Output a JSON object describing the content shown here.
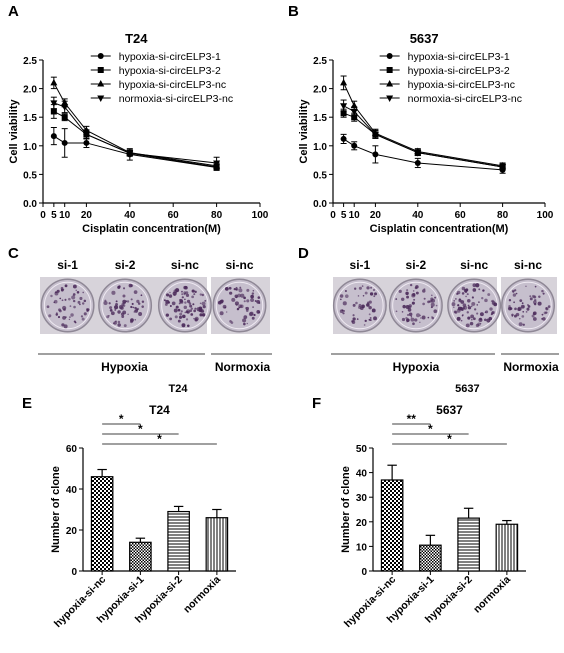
{
  "panels": {
    "A": "A",
    "B": "B",
    "C": "C",
    "D": "D",
    "E": "E",
    "F": "F"
  },
  "chart_data": [
    {
      "type": "line",
      "title": "T24",
      "xlabel": "Cisplatin concentration(M)",
      "ylabel": "Cell viability",
      "xlim": [
        0,
        100
      ],
      "ylim": [
        0.0,
        2.5
      ],
      "xticks": [
        0,
        5,
        10,
        20,
        40,
        60,
        80,
        100
      ],
      "yticks": [
        0.0,
        0.5,
        1.0,
        1.5,
        2.0,
        2.5
      ],
      "x": [
        5,
        10,
        20,
        40,
        80
      ],
      "legend": "top-right",
      "series": [
        {
          "name": "hypoxia-si-circELP3-1",
          "marker": "circle",
          "values": [
            1.17,
            1.05,
            1.05,
            0.85,
            0.62
          ],
          "err": [
            0.15,
            0.25,
            0.08,
            0.1,
            0.05
          ]
        },
        {
          "name": "hypoxia-si-circELP3-2",
          "marker": "square",
          "values": [
            1.6,
            1.5,
            1.2,
            0.87,
            0.63
          ],
          "err": [
            0.12,
            0.06,
            0.08,
            0.05,
            0.05
          ]
        },
        {
          "name": "hypoxia-si-circELP3-nc",
          "marker": "triangle-up",
          "values": [
            2.1,
            1.75,
            1.27,
            0.88,
            0.65
          ],
          "err": [
            0.1,
            0.07,
            0.07,
            0.05,
            0.05
          ]
        },
        {
          "name": "normoxia-si-circELP3-nc",
          "marker": "triangle-down",
          "values": [
            1.75,
            1.68,
            1.2,
            0.87,
            0.7
          ],
          "err": [
            0.1,
            0.1,
            0.07,
            0.05,
            0.1
          ]
        }
      ]
    },
    {
      "type": "line",
      "title": "5637",
      "xlabel": "Cisplatin concentration(M)",
      "ylabel": "Cell viability",
      "xlim": [
        0,
        100
      ],
      "ylim": [
        0.0,
        2.5
      ],
      "xticks": [
        0,
        5,
        10,
        20,
        40,
        60,
        80,
        100
      ],
      "yticks": [
        0.0,
        0.5,
        1.0,
        1.5,
        2.0,
        2.5
      ],
      "x": [
        5,
        10,
        20,
        40,
        80
      ],
      "legend": "top-right",
      "series": [
        {
          "name": "hypoxia-si-circELP3-1",
          "marker": "circle",
          "values": [
            1.12,
            1.0,
            0.85,
            0.7,
            0.58
          ],
          "err": [
            0.08,
            0.07,
            0.15,
            0.08,
            0.06
          ]
        },
        {
          "name": "hypoxia-si-circELP3-2",
          "marker": "square",
          "values": [
            1.57,
            1.5,
            1.2,
            0.88,
            0.63
          ],
          "err": [
            0.07,
            0.07,
            0.07,
            0.05,
            0.05
          ]
        },
        {
          "name": "hypoxia-si-circELP3-nc",
          "marker": "triangle-up",
          "values": [
            2.1,
            1.7,
            1.22,
            0.9,
            0.65
          ],
          "err": [
            0.12,
            0.08,
            0.07,
            0.05,
            0.05
          ]
        },
        {
          "name": "normoxia-si-circELP3-nc",
          "marker": "triangle-down",
          "values": [
            1.7,
            1.6,
            1.2,
            0.88,
            0.63
          ],
          "err": [
            0.1,
            0.08,
            0.07,
            0.05,
            0.05
          ]
        }
      ]
    },
    {
      "type": "bar",
      "title": "T24",
      "xlabel": "",
      "ylabel": "Number of clone",
      "ylim": [
        0,
        60
      ],
      "yticks": [
        0,
        20,
        40,
        60
      ],
      "categories": [
        "hypoxia-si-nc",
        "hypoxia-si-1",
        "hypoxia-si-2",
        "normoxia"
      ],
      "values": [
        46,
        14,
        29,
        26
      ],
      "err": [
        3.5,
        2,
        2.5,
        4
      ],
      "patterns": [
        "checker",
        "checker-small",
        "hlines",
        "vlines"
      ],
      "significance": [
        {
          "from": 0,
          "to": 1,
          "label": "*"
        },
        {
          "from": 0,
          "to": 2,
          "label": "*"
        },
        {
          "from": 0,
          "to": 3,
          "label": "*"
        }
      ]
    },
    {
      "type": "bar",
      "title": "5637",
      "xlabel": "",
      "ylabel": "Number of clone",
      "ylim": [
        0,
        50
      ],
      "yticks": [
        0,
        10,
        20,
        30,
        40,
        50
      ],
      "categories": [
        "hypoxia-si-nc",
        "hypoxia-si-1",
        "hypoxia-si-2",
        "normoxia"
      ],
      "values": [
        37,
        10.5,
        21.5,
        19
      ],
      "err": [
        6,
        4,
        4,
        1.5
      ],
      "patterns": [
        "checker",
        "checker-small",
        "hlines",
        "vlines"
      ],
      "significance": [
        {
          "from": 0,
          "to": 1,
          "label": "**"
        },
        {
          "from": 0,
          "to": 2,
          "label": "*"
        },
        {
          "from": 0,
          "to": 3,
          "label": "*"
        }
      ]
    }
  ],
  "dishes": {
    "C": {
      "labels": [
        "si-1",
        "si-2",
        "si-nc",
        "si-nc"
      ],
      "group1": "Hypoxia",
      "group2": "Normoxia",
      "cell": "T24",
      "colony_levels": [
        0.45,
        0.55,
        0.9,
        0.5
      ]
    },
    "D": {
      "labels": [
        "si-1",
        "si-2",
        "si-nc",
        "si-nc"
      ],
      "group1": "Hypoxia",
      "group2": "Normoxia",
      "cell": "5637",
      "colony_levels": [
        0.35,
        0.5,
        0.8,
        0.5
      ]
    }
  },
  "colors": {
    "line": "#000000",
    "dish_bg": "#c9c3cf",
    "colony": "#4b2a5a"
  }
}
